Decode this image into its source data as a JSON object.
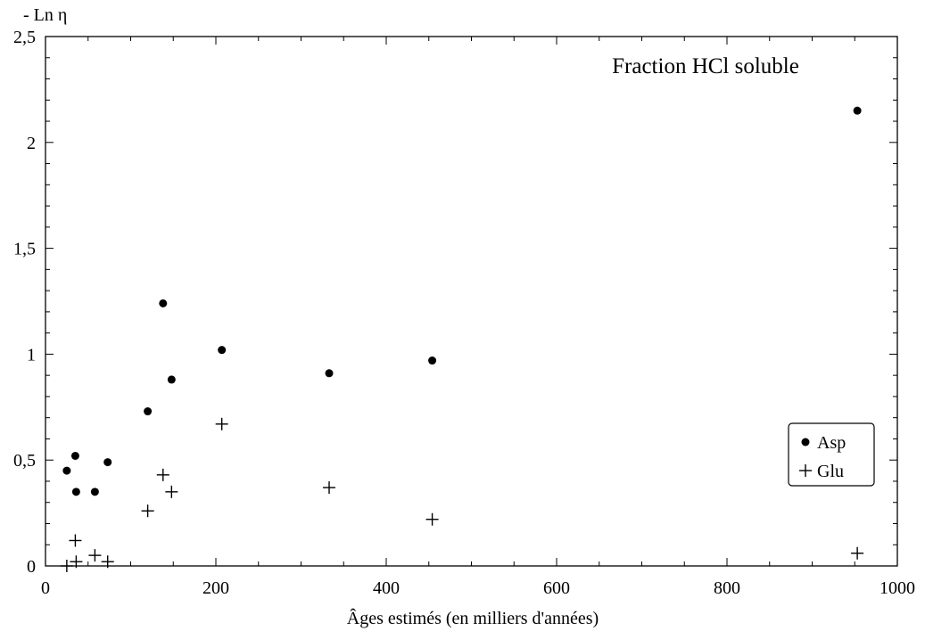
{
  "chart_data": {
    "type": "scatter",
    "title": "Fraction HCl soluble",
    "xlabel": "Âges estimés (en milliers d'années)",
    "ylabel": "- Ln η",
    "xlim": [
      0,
      1000
    ],
    "ylim": [
      0,
      2.5
    ],
    "x_ticks": [
      0,
      200,
      400,
      600,
      800,
      1000
    ],
    "x_tick_labels": [
      "0",
      "200",
      "400",
      "600",
      "800",
      "1000"
    ],
    "y_ticks": [
      0,
      0.5,
      1,
      1.5,
      2,
      2.5
    ],
    "y_tick_labels": [
      "0",
      "0,5",
      "1",
      "1,5",
      "2",
      "2,5"
    ],
    "grid": false,
    "legend_position": "right",
    "series": [
      {
        "name": "Asp",
        "marker": "dot",
        "color": "#000000",
        "points": [
          {
            "x": 25,
            "y": 0.45
          },
          {
            "x": 35,
            "y": 0.52
          },
          {
            "x": 36,
            "y": 0.35
          },
          {
            "x": 58,
            "y": 0.35
          },
          {
            "x": 73,
            "y": 0.49
          },
          {
            "x": 120,
            "y": 0.73
          },
          {
            "x": 138,
            "y": 1.24
          },
          {
            "x": 148,
            "y": 0.88
          },
          {
            "x": 207,
            "y": 1.02
          },
          {
            "x": 333,
            "y": 0.91
          },
          {
            "x": 454,
            "y": 0.97
          },
          {
            "x": 953,
            "y": 2.15
          }
        ]
      },
      {
        "name": "Glu",
        "marker": "cross",
        "color": "#000000",
        "points": [
          {
            "x": 25,
            "y": 0.0
          },
          {
            "x": 35,
            "y": 0.12
          },
          {
            "x": 36,
            "y": 0.02
          },
          {
            "x": 58,
            "y": 0.05
          },
          {
            "x": 73,
            "y": 0.02
          },
          {
            "x": 120,
            "y": 0.26
          },
          {
            "x": 138,
            "y": 0.43
          },
          {
            "x": 148,
            "y": 0.35
          },
          {
            "x": 207,
            "y": 0.67
          },
          {
            "x": 333,
            "y": 0.37
          },
          {
            "x": 454,
            "y": 0.22
          },
          {
            "x": 953,
            "y": 0.06
          }
        ]
      }
    ]
  }
}
